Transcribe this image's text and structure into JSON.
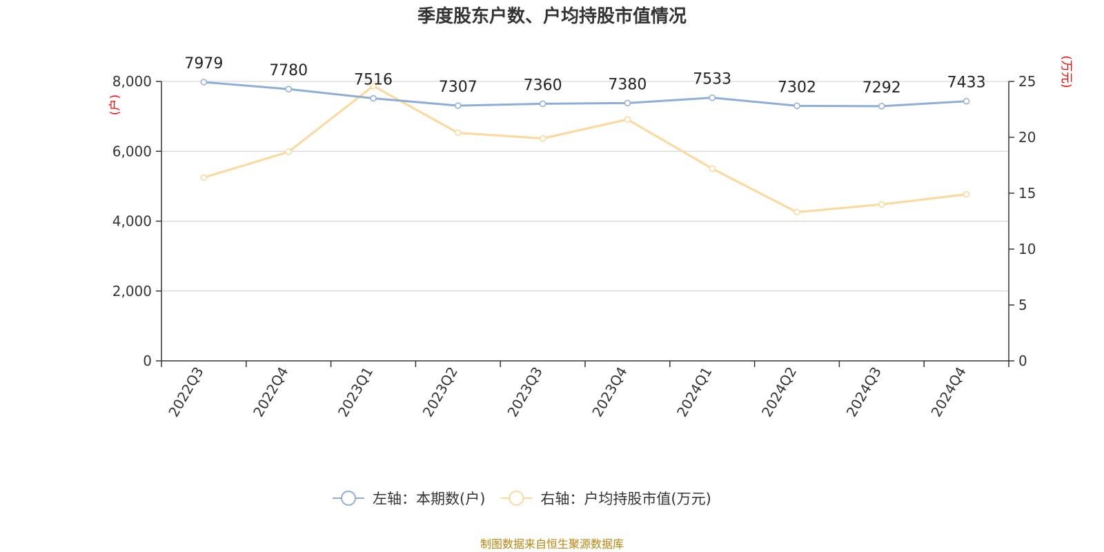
{
  "chart_data": {
    "type": "line",
    "title": "季度股东户数、户均持股市值情况",
    "categories": [
      "2022Q3",
      "2022Q4",
      "2023Q1",
      "2023Q2",
      "2023Q3",
      "2023Q4",
      "2024Q1",
      "2024Q2",
      "2024Q3",
      "2024Q4"
    ],
    "y_left": {
      "unit": "(户)",
      "range": [
        0,
        8000
      ],
      "ticks": [
        0,
        2000,
        4000,
        6000,
        8000
      ],
      "tick_labels": [
        "0",
        "2,000",
        "4,000",
        "6,000",
        "8,000"
      ]
    },
    "y_right": {
      "unit": "(万元)",
      "range": [
        0,
        25
      ],
      "ticks": [
        0,
        5,
        10,
        15,
        20,
        25
      ],
      "tick_labels": [
        "0",
        "5",
        "10",
        "15",
        "20",
        "25"
      ]
    },
    "series": [
      {
        "name": "左轴：本期数(户)",
        "axis": "left",
        "color": "#8eadd9",
        "values": [
          7979,
          7780,
          7516,
          7307,
          7360,
          7380,
          7533,
          7302,
          7292,
          7433
        ],
        "labels": [
          "7979",
          "7780",
          "7516",
          "7307",
          "7360",
          "7380",
          "7533",
          "7302",
          "7292",
          "7433"
        ]
      },
      {
        "name": "右轴：户均持股市值(万元)",
        "axis": "right",
        "color": "#fcd89b",
        "values": [
          16.4,
          18.7,
          24.6,
          20.4,
          19.9,
          21.6,
          17.2,
          13.3,
          14.0,
          14.9
        ]
      }
    ],
    "grid": true,
    "legend": "bottom-center"
  },
  "colors": {
    "unit_label": "#ff0000",
    "footer": "#b8860b",
    "axis": "#333333",
    "grid": "#cccccc"
  },
  "footer": "制图数据来自恒生聚源数据库"
}
